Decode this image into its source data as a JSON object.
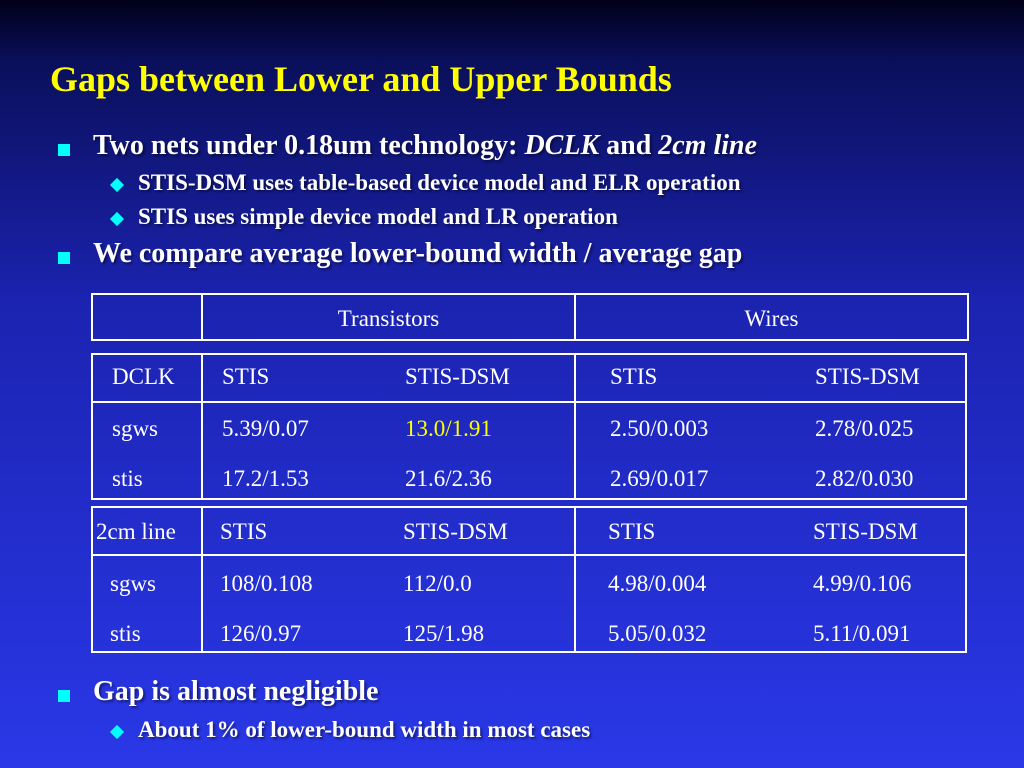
{
  "slide": {
    "title": "Gaps between Lower and Upper Bounds",
    "bullets": [
      {
        "pre": "Two nets under 0.18um technology: ",
        "em1": "DCLK",
        "mid": " and ",
        "em2": "2cm line"
      },
      {
        "text": "STIS-DSM uses table-based device model and ELR operation"
      },
      {
        "text": "STIS uses simple device model and LR operation"
      },
      {
        "text": "We compare average lower-bound width / average gap"
      },
      {
        "text": "Gap is almost negligible"
      },
      {
        "text": "About 1% of lower-bound width in most cases"
      }
    ]
  },
  "header_table": {
    "transistors": "Transistors",
    "wires": "Wires"
  },
  "dclk_table": {
    "label": "DCLK",
    "cols": [
      "STIS",
      "STIS-DSM",
      "STIS",
      "STIS-DSM"
    ],
    "rows": [
      {
        "name": "sgws",
        "values": [
          "5.39/0.07",
          "13.0/1.91",
          "2.50/0.003",
          "2.78/0.025"
        ]
      },
      {
        "name": "stis",
        "values": [
          "17.2/1.53",
          "21.6/2.36",
          "2.69/0.017",
          "2.82/0.030"
        ]
      }
    ]
  },
  "line_table": {
    "label": "2cm line",
    "cols": [
      "STIS",
      "STIS-DSM",
      "STIS",
      "STIS-DSM"
    ],
    "rows": [
      {
        "name": "sgws",
        "values": [
          "108/0.108",
          "112/0.0",
          "4.98/0.004",
          "4.99/0.106"
        ]
      },
      {
        "name": "stis",
        "values": [
          "126/0.97",
          "125/1.98",
          "5.05/0.032",
          "5.11/0.091"
        ]
      }
    ]
  },
  "colors": {
    "title": "#ffff00",
    "bullet_marker": "#00ffff",
    "highlight": "#ffff00",
    "text": "#ffffff"
  }
}
